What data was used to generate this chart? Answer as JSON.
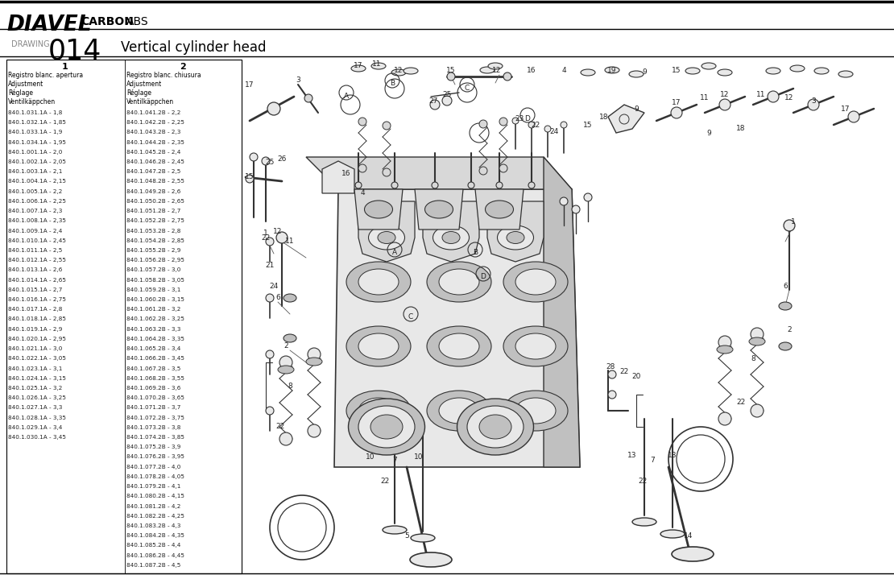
{
  "title_brand": "DIAVEL",
  "title_sub1": "CARBON",
  "title_sub2": "ABS",
  "drawing_label": "DRAWING",
  "drawing_number": "014",
  "drawing_title": "Vertical cylinder head",
  "bg_color": "#ffffff",
  "col1_header": "1",
  "col2_header": "2",
  "col1_subheader": [
    "Registro blanc. apertura",
    "Adjustment",
    "Réglage",
    "Ventilkäppchen"
  ],
  "col2_subheader": [
    "Registro blanc. chiusura",
    "Adjustment",
    "Réglage",
    "Ventilkäppchen"
  ],
  "col1_data": [
    "840.1.031.1A - 1,8",
    "840.1.032.1A - 1,85",
    "840.1.033.1A - 1,9",
    "840.1.034.1A - 1,95",
    "840.1.001.1A - 2,0",
    "840.1.002.1A - 2,05",
    "840.1.003.1A - 2,1",
    "840.1.004.1A - 2,15",
    "840.1.005.1A - 2,2",
    "840.1.006.1A - 2,25",
    "840.1.007.1A - 2,3",
    "840.1.008.1A - 2,35",
    "840.1.009.1A - 2,4",
    "840.1.010.1A - 2,45",
    "840.1.011.1A - 2,5",
    "840.1.012.1A - 2,55",
    "840.1.013.1A - 2,6",
    "840.1.014.1A - 2,65",
    "840.1.015.1A - 2,7",
    "840.1.016.1A - 2,75",
    "840.1.017.1A - 2,8",
    "840.1.018.1A - 2,85",
    "840.1.019.1A - 2,9",
    "840.1.020.1A - 2,95",
    "840.1.021.1A - 3,0",
    "840.1.022.1A - 3,05",
    "840.1.023.1A - 3,1",
    "840.1.024.1A - 3,15",
    "840.1.025.1A - 3,2",
    "840.1.026.1A - 3,25",
    "840.1.027.1A - 3,3",
    "840.1.028.1A - 3,35",
    "840.1.029.1A - 3,4",
    "840.1.030.1A - 3,45"
  ],
  "col2_data": [
    "840.1.041.2B - 2,2",
    "840.1.042.2B - 2,25",
    "840.1.043.2B - 2,3",
    "840.1.044.2B - 2,35",
    "840.1.045.2B - 2,4",
    "840.1.046.2B - 2,45",
    "840.1.047.2B - 2,5",
    "840.1.048.2B - 2,55",
    "840.1.049.2B - 2,6",
    "840.1.050.2B - 2,65",
    "840.1.051.2B - 2,7",
    "840.1.052.2B - 2,75",
    "840.1.053.2B - 2,8",
    "840.1.054.2B - 2,85",
    "840.1.055.2B - 2,9",
    "840.1.056.2B - 2,95",
    "840.1.057.2B - 3,0",
    "840.1.058.2B - 3,05",
    "840.1.059.2B - 3,1",
    "840.1.060.2B - 3,15",
    "840.1.061.2B - 3,2",
    "840.1.062.2B - 3,25",
    "840.1.063.2B - 3,3",
    "840.1.064.2B - 3,35",
    "840.1.065.2B - 3,4",
    "840.1.066.2B - 3,45",
    "840.1.067.2B - 3,5",
    "840.1.068.2B - 3,55",
    "840.1.069.2B - 3,6",
    "840.1.070.2B - 3,65",
    "840.1.071.2B - 3,7",
    "840.1.072.2B - 3,75",
    "840.1.073.2B - 3,8",
    "840.1.074.2B - 3,85",
    "840.1.075.2B - 3,9",
    "840.1.076.2B - 3,95",
    "840.1.077.2B - 4,0",
    "840.1.078.2B - 4,05",
    "840.1.079.2B - 4,1",
    "840.1.080.2B - 4,15",
    "840.1.081.2B - 4,2",
    "840.1.082.2B - 4,25",
    "840.1.083.2B - 4,3",
    "840.1.084.2B - 4,35",
    "840.1.085.2B - 4,4",
    "840.1.086.2B - 4,45",
    "840.1.087.2B - 4,5"
  ]
}
